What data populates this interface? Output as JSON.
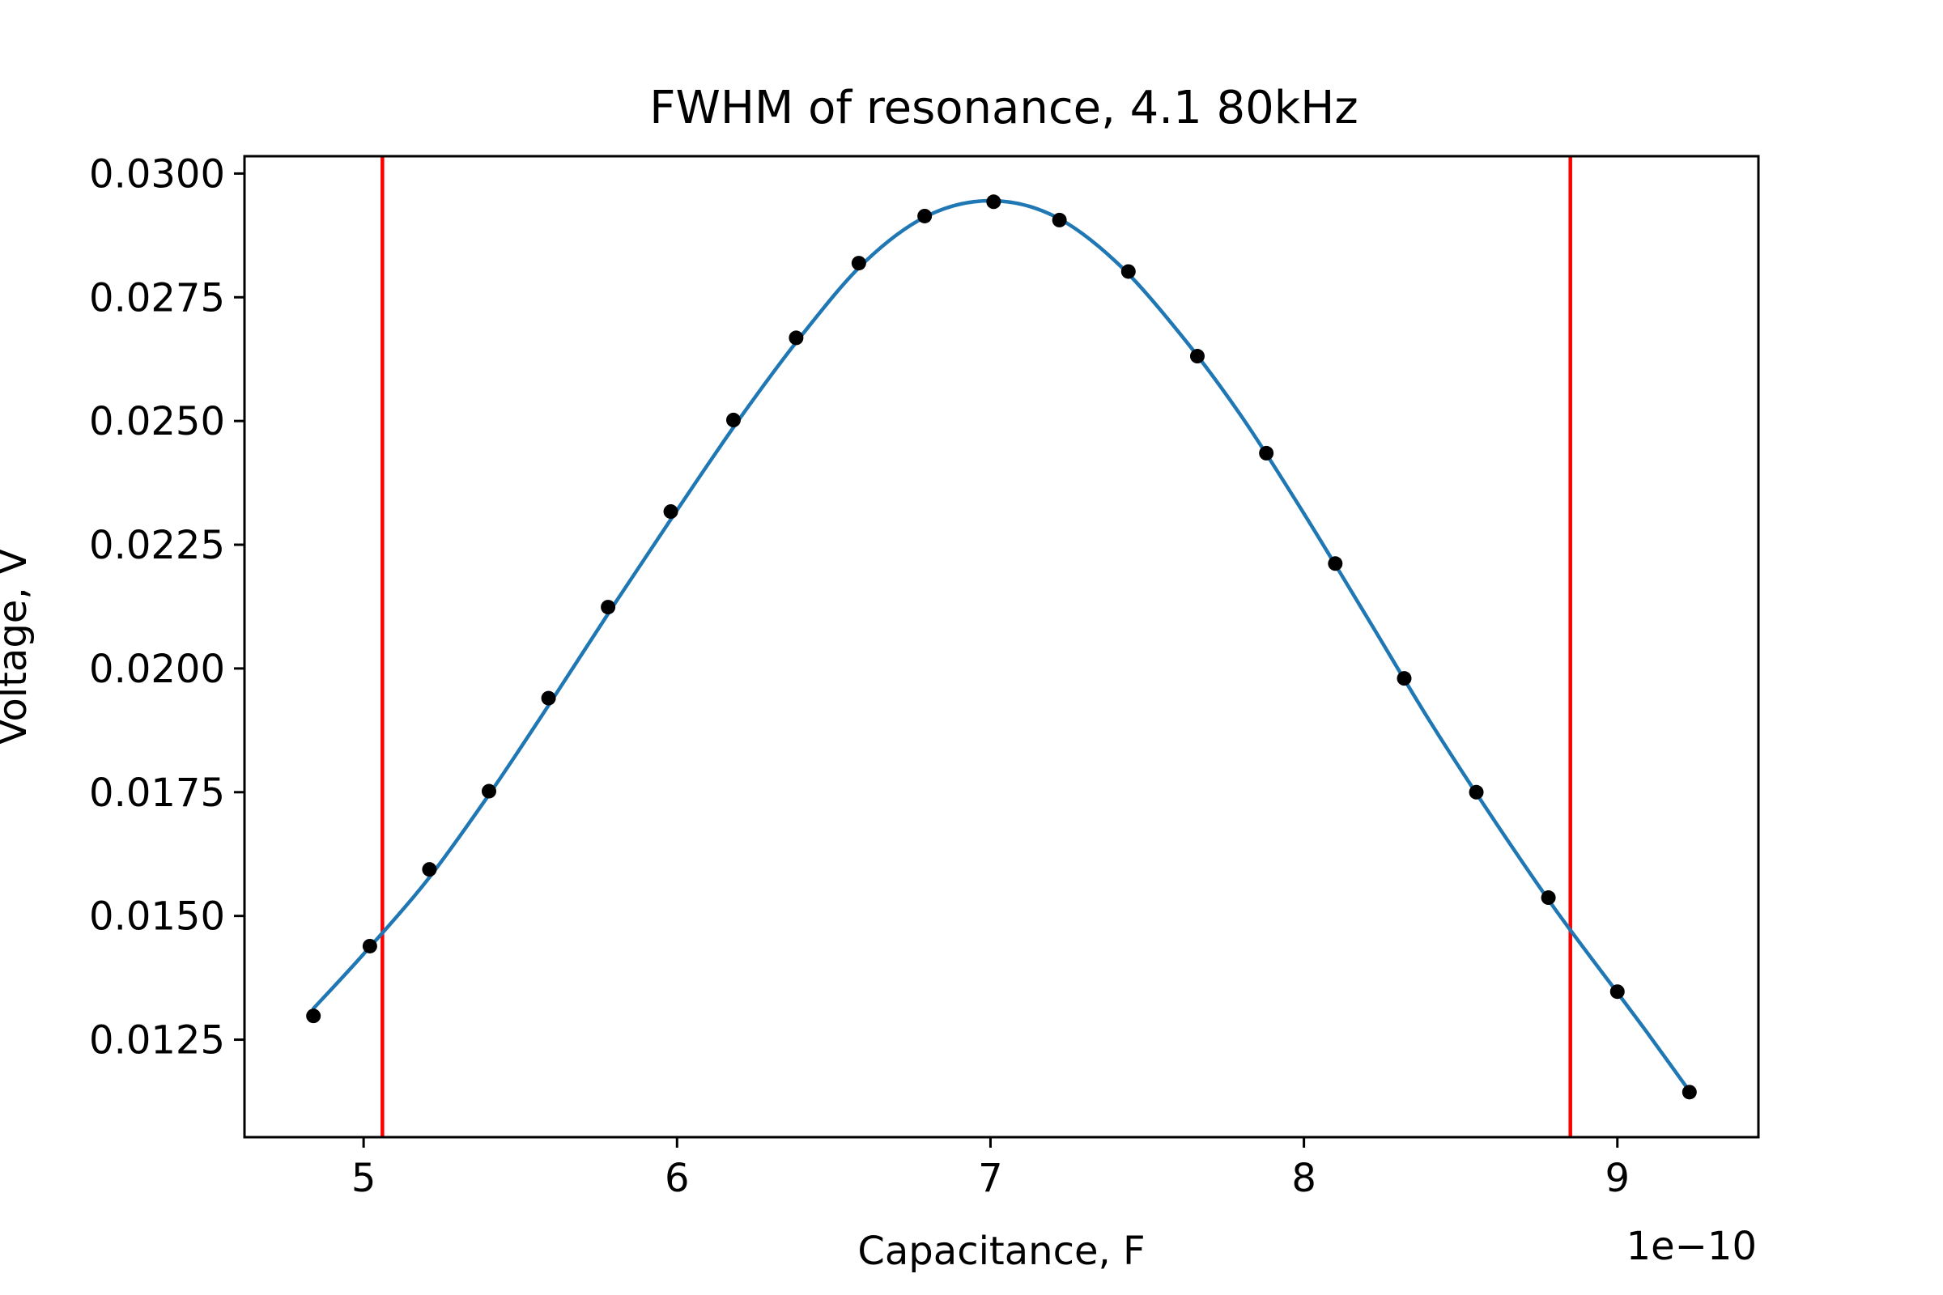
{
  "figure": {
    "title": "FWHM of resonance, 4.1 80kHz",
    "xlabel": "Capacitance, F",
    "ylabel": "Voltage, V",
    "x_offset_label": "1e−10"
  },
  "chart_data": {
    "type": "line",
    "title": "FWHM of resonance, 4.1 80kHz",
    "xlabel": "Capacitance, F",
    "ylabel": "Voltage, V",
    "x_scale_factor": "1e-10",
    "xlim": [
      4.62,
      9.45
    ],
    "ylim": [
      0.01053,
      0.03035
    ],
    "x_ticks": [
      5,
      6,
      7,
      8,
      9
    ],
    "x_tick_labels": [
      "5",
      "6",
      "7",
      "8",
      "9"
    ],
    "y_ticks": [
      0.0125,
      0.015,
      0.0175,
      0.02,
      0.0225,
      0.025,
      0.0275,
      0.03
    ],
    "y_tick_labels": [
      "0.0125",
      "0.0150",
      "0.0175",
      "0.0200",
      "0.0225",
      "0.0250",
      "0.0275",
      "0.0300"
    ],
    "grid": false,
    "series": [
      {
        "kind": "points",
        "color": "#000000",
        "x": [
          4.84,
          5.02,
          5.21,
          5.4,
          5.59,
          5.78,
          5.98,
          6.18,
          6.38,
          6.58,
          6.79,
          7.01,
          7.22,
          7.44,
          7.66,
          7.88,
          8.1,
          8.32,
          8.55,
          8.78,
          9.0,
          9.23
        ],
        "y": [
          0.01298,
          0.01439,
          0.01594,
          0.01752,
          0.0194,
          0.02124,
          0.02317,
          0.02502,
          0.02668,
          0.02819,
          0.02914,
          0.02943,
          0.02906,
          0.02802,
          0.02631,
          0.02435,
          0.02212,
          0.0198,
          0.0175,
          0.01537,
          0.01347,
          0.01144
        ]
      },
      {
        "kind": "fit-curve",
        "color": "#1f77b4",
        "x": [
          4.84,
          5.0,
          5.2,
          5.4,
          5.6,
          5.8,
          6.0,
          6.2,
          6.4,
          6.6,
          6.8,
          7.0,
          7.2,
          7.4,
          7.6,
          7.8,
          8.0,
          8.2,
          8.4,
          8.6,
          8.8,
          9.0,
          9.1,
          9.23
        ],
        "y": [
          0.01313,
          0.01423,
          0.0157,
          0.01745,
          0.01935,
          0.0213,
          0.0232,
          0.02505,
          0.02675,
          0.02822,
          0.02915,
          0.02945,
          0.02915,
          0.02822,
          0.0268,
          0.0251,
          0.02313,
          0.02105,
          0.01895,
          0.017,
          0.01515,
          0.01345,
          0.0126,
          0.01146
        ]
      }
    ],
    "vertical_lines": [
      {
        "x": 5.06,
        "color": "#ff0000"
      },
      {
        "x": 8.85,
        "color": "#ff0000"
      }
    ]
  }
}
